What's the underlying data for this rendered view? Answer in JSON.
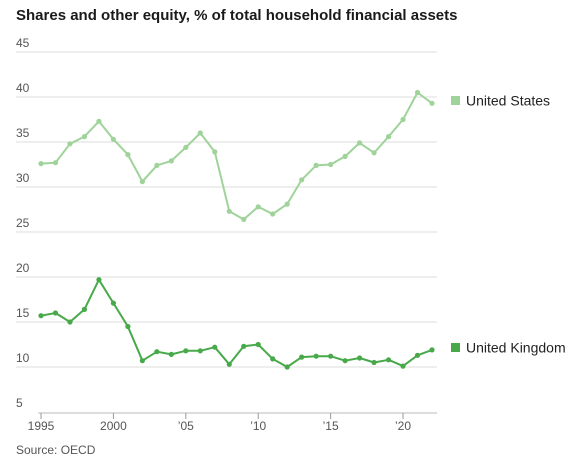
{
  "chart_data": {
    "type": "line",
    "title": "Shares and other equity, % of total household financial assets",
    "source": "Source: OECD",
    "xlabel": "",
    "ylabel": "",
    "ylim": [
      5,
      45
    ],
    "xlim": [
      1995,
      2022
    ],
    "grid": "horizontal",
    "legend": "right, at end of lines",
    "y_ticks": [
      {
        "value": 45,
        "label": "45"
      },
      {
        "value": 40,
        "label": "40"
      },
      {
        "value": 35,
        "label": "35"
      },
      {
        "value": 30,
        "label": "30"
      },
      {
        "value": 25,
        "label": "25"
      },
      {
        "value": 20,
        "label": "20"
      },
      {
        "value": 15,
        "label": "15"
      },
      {
        "value": 10,
        "label": "10"
      },
      {
        "value": 5,
        "label": "5"
      }
    ],
    "x_ticks": [
      {
        "value": 1995,
        "label": "1995"
      },
      {
        "value": 2000,
        "label": "2000"
      },
      {
        "value": 2005,
        "label": "’05"
      },
      {
        "value": 2010,
        "label": "’10"
      },
      {
        "value": 2015,
        "label": "’15"
      },
      {
        "value": 2020,
        "label": "’20"
      }
    ],
    "x": [
      1995,
      1996,
      1997,
      1998,
      1999,
      2000,
      2001,
      2002,
      2003,
      2004,
      2005,
      2006,
      2007,
      2008,
      2009,
      2010,
      2011,
      2012,
      2013,
      2014,
      2015,
      2016,
      2017,
      2018,
      2019,
      2020,
      2021,
      2022
    ],
    "series": [
      {
        "name": "United States",
        "color": "#9fd39a",
        "values": [
          32.6,
          32.7,
          34.8,
          35.6,
          37.3,
          35.3,
          33.6,
          30.6,
          32.4,
          32.9,
          34.4,
          36.0,
          33.9,
          27.3,
          26.4,
          27.8,
          27.0,
          28.1,
          30.8,
          32.4,
          32.5,
          33.4,
          34.9,
          33.8,
          35.6,
          37.5,
          40.5,
          39.3
        ]
      },
      {
        "name": "United Kingdom",
        "color": "#48a94b",
        "values": [
          15.7,
          16.0,
          15.0,
          16.4,
          19.7,
          17.1,
          14.5,
          10.7,
          11.7,
          11.4,
          11.8,
          11.8,
          12.2,
          10.3,
          12.3,
          12.5,
          10.9,
          10.0,
          11.1,
          11.2,
          11.2,
          10.7,
          11.0,
          10.5,
          10.8,
          10.1,
          11.3,
          11.9
        ]
      }
    ]
  }
}
